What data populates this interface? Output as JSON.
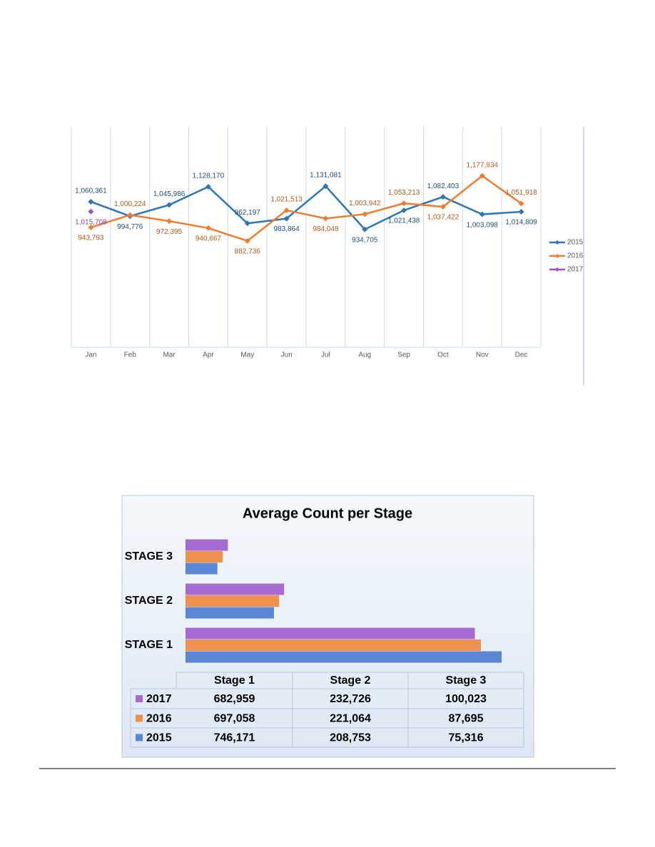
{
  "chart_data": [
    {
      "type": "line",
      "categories": [
        "Jan",
        "Feb",
        "Mar",
        "Apr",
        "May",
        "Jun",
        "Jul",
        "Aug",
        "Sep",
        "Oct",
        "Nov",
        "Dec"
      ],
      "ylim": [
        400000,
        1400000
      ],
      "grid": true,
      "legend": "right",
      "series": [
        {
          "name": "2015",
          "color": "#2e75b6",
          "label_color": "#1f4e79",
          "values": [
            1060361,
            994776,
            1045986,
            1128170,
            962197,
            983864,
            1131081,
            934705,
            1021438,
            1082403,
            1003098,
            1014809
          ],
          "value_labels": [
            "1,060,361",
            "994,776",
            "1,045,986",
            "1,128,170",
            "962,197",
            "983,864",
            "1,131,081",
            "934,705",
            "1,021,438",
            "1,082,403",
            "1,003,098",
            "1,014,809"
          ]
        },
        {
          "name": "2016",
          "color": "#ed7d31",
          "label_color": "#b45a1c",
          "values": [
            943793,
            1000224,
            972395,
            940667,
            882736,
            1021513,
            984048,
            1003942,
            1053213,
            1037422,
            1177934,
            1051918
          ],
          "value_labels": [
            "943,793",
            "1,000,224",
            "972,395",
            "940,667",
            "882,736",
            "1,021,513",
            "984,048",
            "1,003,942",
            "1,053,213",
            "1,037,422",
            "1,177,934",
            "1,051,918"
          ]
        },
        {
          "name": "2017",
          "color": "#9e4fc9",
          "label_color": "#8a3fb5",
          "values": [
            1015708,
            null,
            null,
            null,
            null,
            null,
            null,
            null,
            null,
            null,
            null,
            null
          ],
          "value_labels": [
            "1,015,708",
            null,
            null,
            null,
            null,
            null,
            null,
            null,
            null,
            null,
            null,
            null
          ]
        }
      ]
    },
    {
      "type": "hbar",
      "title": "Average Count per Stage",
      "categories": [
        "STAGE 1",
        "STAGE 2",
        "STAGE 3"
      ],
      "table_columns": [
        "Stage 1",
        "Stage 2",
        "Stage 3"
      ],
      "xlim": [
        0,
        800000
      ],
      "series": [
        {
          "name": "2015",
          "color": "#5b86d4",
          "values": [
            746171,
            208753,
            75316
          ],
          "value_labels": [
            "746,171",
            "208,753",
            "75,316"
          ]
        },
        {
          "name": "2016",
          "color": "#f0904f",
          "values": [
            697058,
            221064,
            87695
          ],
          "value_labels": [
            "697,058",
            "221,064",
            "87,695"
          ]
        },
        {
          "name": "2017",
          "color": "#a66bd3",
          "values": [
            682959,
            232726,
            100023
          ],
          "value_labels": [
            "682,959",
            "232,726",
            "100,023"
          ]
        }
      ]
    }
  ]
}
